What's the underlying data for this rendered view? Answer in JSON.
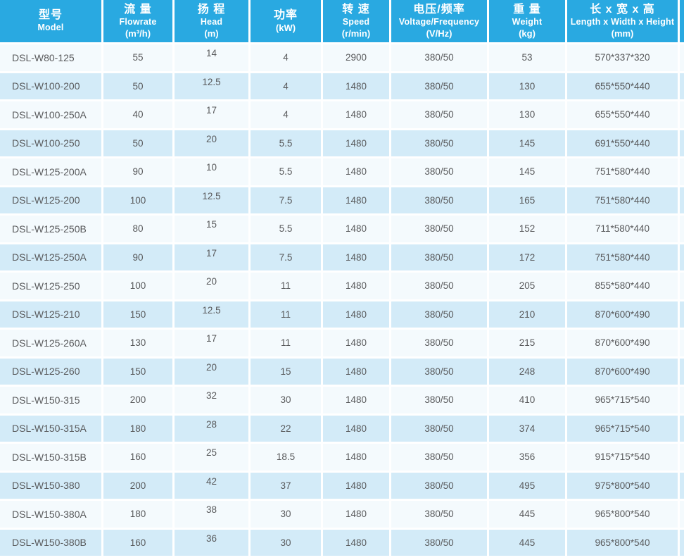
{
  "colors": {
    "header_bg": "#29A9E1",
    "row_light": "#F4FAFD",
    "row_shaded": "#D3EBF8",
    "cell_text": "#58595B",
    "header_text": "#FFFFFF"
  },
  "chart_data": {
    "type": "table",
    "columns": [
      {
        "cn": "型号",
        "en": "Model",
        "unit": ""
      },
      {
        "cn": "流 量",
        "en": "Flowrate",
        "unit": "(m³/h)"
      },
      {
        "cn": "扬 程",
        "en": "Head",
        "unit": "(m)"
      },
      {
        "cn": "功率",
        "en": "",
        "unit": "(kW)"
      },
      {
        "cn": "转 速",
        "en": "Speed",
        "unit": "(r/min)"
      },
      {
        "cn": "电压/频率",
        "en": "Voltage/Frequency",
        "unit": "(V/Hz)"
      },
      {
        "cn": "重 量",
        "en": "Weight",
        "unit": "(kg)"
      },
      {
        "cn": "长 x 宽 x 高",
        "en": "Length x Width x Height",
        "unit": "(mm)"
      }
    ],
    "rows": [
      [
        "DSL-W80-125",
        "55",
        "14",
        "4",
        "2900",
        "380/50",
        "53",
        "570*337*320"
      ],
      [
        "DSL-W100-200",
        "50",
        "12.5",
        "4",
        "1480",
        "380/50",
        "130",
        "655*550*440"
      ],
      [
        "DSL-W100-250A",
        "40",
        "17",
        "4",
        "1480",
        "380/50",
        "130",
        "655*550*440"
      ],
      [
        "DSL-W100-250",
        "50",
        "20",
        "5.5",
        "1480",
        "380/50",
        "145",
        "691*550*440"
      ],
      [
        "DSL-W125-200A",
        "90",
        "10",
        "5.5",
        "1480",
        "380/50",
        "145",
        "751*580*440"
      ],
      [
        "DSL-W125-200",
        "100",
        "12.5",
        "7.5",
        "1480",
        "380/50",
        "165",
        "751*580*440"
      ],
      [
        "DSL-W125-250B",
        "80",
        "15",
        "5.5",
        "1480",
        "380/50",
        "152",
        "711*580*440"
      ],
      [
        "DSL-W125-250A",
        "90",
        "17",
        "7.5",
        "1480",
        "380/50",
        "172",
        "751*580*440"
      ],
      [
        "DSL-W125-250",
        "100",
        "20",
        "11",
        "1480",
        "380/50",
        "205",
        "855*580*440"
      ],
      [
        "DSL-W125-210",
        "150",
        "12.5",
        "11",
        "1480",
        "380/50",
        "210",
        "870*600*490"
      ],
      [
        "DSL-W125-260A",
        "130",
        "17",
        "11",
        "1480",
        "380/50",
        "215",
        "870*600*490"
      ],
      [
        "DSL-W125-260",
        "150",
        "20",
        "15",
        "1480",
        "380/50",
        "248",
        "870*600*490"
      ],
      [
        "DSL-W150-315",
        "200",
        "32",
        "30",
        "1480",
        "380/50",
        "410",
        "965*715*540"
      ],
      [
        "DSL-W150-315A",
        "180",
        "28",
        "22",
        "1480",
        "380/50",
        "374",
        "965*715*540"
      ],
      [
        "DSL-W150-315B",
        "160",
        "25",
        "18.5",
        "1480",
        "380/50",
        "356",
        "915*715*540"
      ],
      [
        "DSL-W150-380",
        "200",
        "42",
        "37",
        "1480",
        "380/50",
        "495",
        "975*800*540"
      ],
      [
        "DSL-W150-380A",
        "180",
        "38",
        "30",
        "1480",
        "380/50",
        "445",
        "965*800*540"
      ],
      [
        "DSL-W150-380B",
        "160",
        "36",
        "30",
        "1480",
        "380/50",
        "445",
        "965*800*540"
      ]
    ]
  }
}
